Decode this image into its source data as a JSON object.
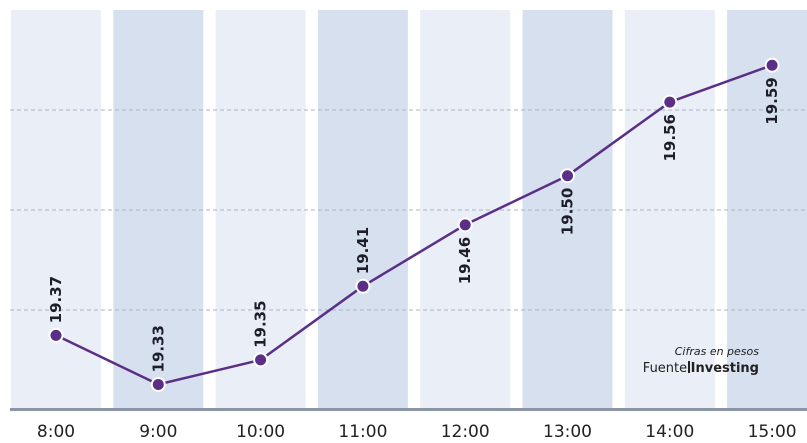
{
  "chart_data": {
    "type": "line",
    "title": "",
    "xlabel": "",
    "ylabel": "",
    "categories": [
      "8:00",
      "9:00",
      "10:00",
      "11:00",
      "12:00",
      "13:00",
      "14:00",
      "15:00"
    ],
    "values": [
      19.37,
      19.33,
      19.35,
      19.41,
      19.46,
      19.5,
      19.56,
      19.59
    ],
    "data_labels": [
      "19.37",
      "19.33",
      "19.35",
      "19.41",
      "19.46",
      "19.50",
      "19.56",
      "19.59"
    ],
    "ylim": [
      19.31,
      19.635
    ],
    "grid": true,
    "legend": "none",
    "colors": {
      "line": "#5b2f86",
      "marker_fill": "#5b2f86",
      "marker_stroke": "#ffffff",
      "band_light": "#e9eef7",
      "band_dark": "#d6e0ef",
      "gridline": "#aab4c4",
      "baseline": "#8b95a6"
    }
  },
  "note": {
    "unit": "Cifras en pesos",
    "source_prefix": "Fuente",
    "source_name": "Investing"
  }
}
